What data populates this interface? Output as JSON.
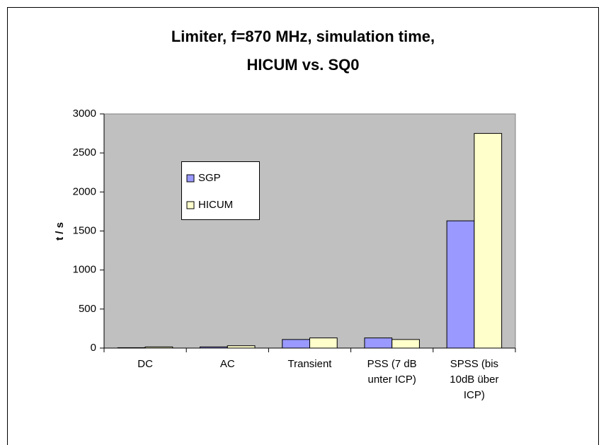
{
  "chart_data": {
    "type": "bar",
    "title": "Limiter, f=870 MHz, simulation time, HICUM vs. SQ0",
    "y_label": "t / s",
    "categories": [
      "DC",
      "AC",
      "Transient",
      "PSS (7 dB unter ICP)",
      "SPSS (bis 10dB über ICP)"
    ],
    "series": [
      {
        "name": "SGP",
        "color": "#9999ff",
        "values": [
          5,
          15,
          110,
          130,
          1630
        ]
      },
      {
        "name": "HICUM",
        "color": "#ffffcc",
        "values": [
          15,
          30,
          130,
          110,
          2750
        ]
      }
    ],
    "ylim": [
      0,
      3000
    ],
    "yticks": [
      0,
      500,
      1000,
      1500,
      2000,
      2500,
      3000
    ],
    "plot_background": "#c0c0c0"
  }
}
